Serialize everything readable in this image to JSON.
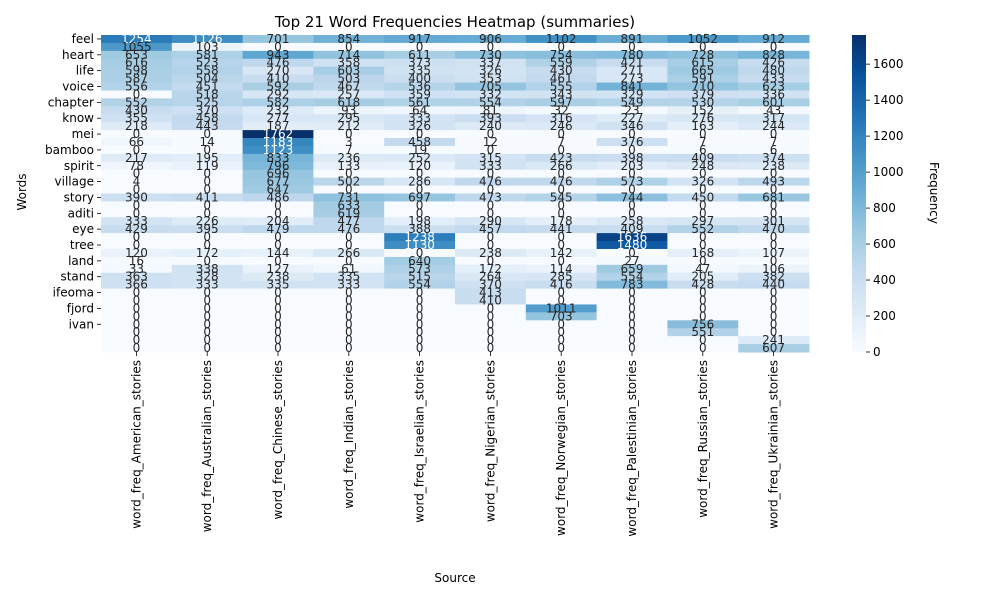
{
  "chart_data": {
    "type": "heatmap",
    "title": "Top 21 Word Frequencies Heatmap (summaries)",
    "xlabel": "Source",
    "ylabel": "Words",
    "colorbar_label": "Frequency",
    "colorbar_ticks": [
      0,
      200,
      400,
      600,
      800,
      1000,
      1200,
      1400,
      1600
    ],
    "vmin": 0,
    "vmax": 1762,
    "colormap": [
      "#f7fbff",
      "#deebf7",
      "#c6dbef",
      "#9ecae1",
      "#6baed6",
      "#4292c6",
      "#2171b5",
      "#08519c",
      "#08306b"
    ],
    "columns": [
      "word_freq_American_stories",
      "word_freq_Australian_stories",
      "word_freq_Chinese_stories",
      "word_freq_Indian_stories",
      "word_freq_Israelian_stories",
      "word_freq_Nigerian_stories",
      "word_freq_Norwegian_stories",
      "word_freq_Palestinian_stories",
      "word_freq_Russian_stories",
      "word_freq_Ukrainian_stories"
    ],
    "row_tick_labels": [
      {
        "row": 0,
        "label": "feel"
      },
      {
        "row": 2,
        "label": "heart"
      },
      {
        "row": 4,
        "label": "life"
      },
      {
        "row": 6,
        "label": "voice"
      },
      {
        "row": 8,
        "label": "chapter"
      },
      {
        "row": 10,
        "label": "know"
      },
      {
        "row": 12,
        "label": "mei"
      },
      {
        "row": 14,
        "label": "bamboo"
      },
      {
        "row": 16,
        "label": "spirit"
      },
      {
        "row": 18,
        "label": "village"
      },
      {
        "row": 20,
        "label": "story"
      },
      {
        "row": 22,
        "label": "aditi"
      },
      {
        "row": 24,
        "label": "eye"
      },
      {
        "row": 26,
        "label": "tree"
      },
      {
        "row": 28,
        "label": "land"
      },
      {
        "row": 30,
        "label": "stand"
      },
      {
        "row": 32,
        "label": "ifeoma"
      },
      {
        "row": 34,
        "label": "fjord"
      },
      {
        "row": 36,
        "label": "ivan"
      }
    ],
    "values": [
      [
        1254,
        1126,
        701,
        854,
        917,
        906,
        1102,
        891,
        1052,
        912
      ],
      [
        1055,
        103,
        0,
        0,
        0,
        0,
        0,
        0,
        0,
        0
      ],
      [
        653,
        581,
        943,
        714,
        611,
        730,
        754,
        780,
        728,
        828
      ],
      [
        616,
        523,
        476,
        358,
        373,
        337,
        559,
        421,
        615,
        426
      ],
      [
        598,
        558,
        270,
        603,
        335,
        326,
        430,
        271,
        665,
        480
      ],
      [
        587,
        504,
        410,
        503,
        400,
        353,
        461,
        273,
        591,
        433
      ],
      [
        556,
        451,
        592,
        467,
        536,
        705,
        555,
        841,
        710,
        623
      ],
      [
        0,
        518,
        292,
        257,
        359,
        332,
        343,
        329,
        379,
        336
      ],
      [
        552,
        525,
        582,
        618,
        561,
        554,
        597,
        549,
        530,
        601
      ],
      [
        430,
        370,
        232,
        93,
        64,
        81,
        32,
        23,
        152,
        43
      ],
      [
        355,
        458,
        277,
        295,
        333,
        393,
        316,
        227,
        276,
        317
      ],
      [
        218,
        443,
        187,
        212,
        326,
        240,
        246,
        346,
        163,
        244
      ],
      [
        0,
        0,
        1762,
        0,
        0,
        0,
        0,
        0,
        0,
        0
      ],
      [
        66,
        14,
        1183,
        3,
        458,
        12,
        7,
        376,
        7,
        7
      ],
      [
        0,
        0,
        1123,
        7,
        19,
        0,
        0,
        0,
        6,
        6
      ],
      [
        217,
        195,
        833,
        236,
        252,
        315,
        423,
        398,
        409,
        374
      ],
      [
        78,
        119,
        796,
        133,
        120,
        333,
        266,
        203,
        248,
        238
      ],
      [
        0,
        0,
        696,
        0,
        0,
        0,
        0,
        0,
        0,
        0
      ],
      [
        4,
        0,
        677,
        502,
        286,
        476,
        476,
        573,
        326,
        493
      ],
      [
        0,
        0,
        647,
        0,
        0,
        0,
        0,
        0,
        0,
        0
      ],
      [
        390,
        411,
        486,
        731,
        697,
        473,
        545,
        744,
        450,
        681
      ],
      [
        0,
        0,
        0,
        633,
        0,
        0,
        0,
        0,
        0,
        0
      ],
      [
        0,
        0,
        0,
        619,
        0,
        0,
        0,
        0,
        0,
        0
      ],
      [
        333,
        226,
        204,
        477,
        198,
        290,
        178,
        258,
        297,
        301
      ],
      [
        429,
        395,
        479,
        476,
        388,
        457,
        441,
        409,
        552,
        470
      ],
      [
        0,
        0,
        0,
        0,
        1238,
        0,
        0,
        1636,
        0,
        0
      ],
      [
        0,
        0,
        0,
        0,
        1130,
        0,
        0,
        1480,
        0,
        0
      ],
      [
        120,
        172,
        144,
        266,
        0,
        238,
        142,
        0,
        168,
        107
      ],
      [
        16,
        0,
        0,
        0,
        640,
        0,
        0,
        27,
        0,
        0
      ],
      [
        33,
        338,
        127,
        61,
        573,
        172,
        114,
        659,
        47,
        106
      ],
      [
        363,
        328,
        238,
        335,
        515,
        264,
        285,
        554,
        205,
        382
      ],
      [
        366,
        333,
        335,
        333,
        554,
        370,
        416,
        783,
        428,
        440
      ],
      [
        0,
        0,
        0,
        0,
        0,
        413,
        0,
        0,
        0,
        0
      ],
      [
        0,
        0,
        0,
        0,
        0,
        410,
        0,
        0,
        0,
        0
      ],
      [
        0,
        0,
        0,
        0,
        0,
        0,
        1011,
        0,
        0,
        0
      ],
      [
        0,
        0,
        0,
        0,
        0,
        0,
        703,
        0,
        0,
        0
      ],
      [
        0,
        0,
        0,
        0,
        0,
        0,
        0,
        0,
        756,
        0
      ],
      [
        0,
        0,
        0,
        0,
        0,
        0,
        0,
        0,
        551,
        0
      ],
      [
        0,
        0,
        0,
        0,
        0,
        0,
        0,
        0,
        0,
        241
      ],
      [
        0,
        0,
        0,
        0,
        0,
        0,
        0,
        0,
        0,
        607
      ]
    ]
  }
}
